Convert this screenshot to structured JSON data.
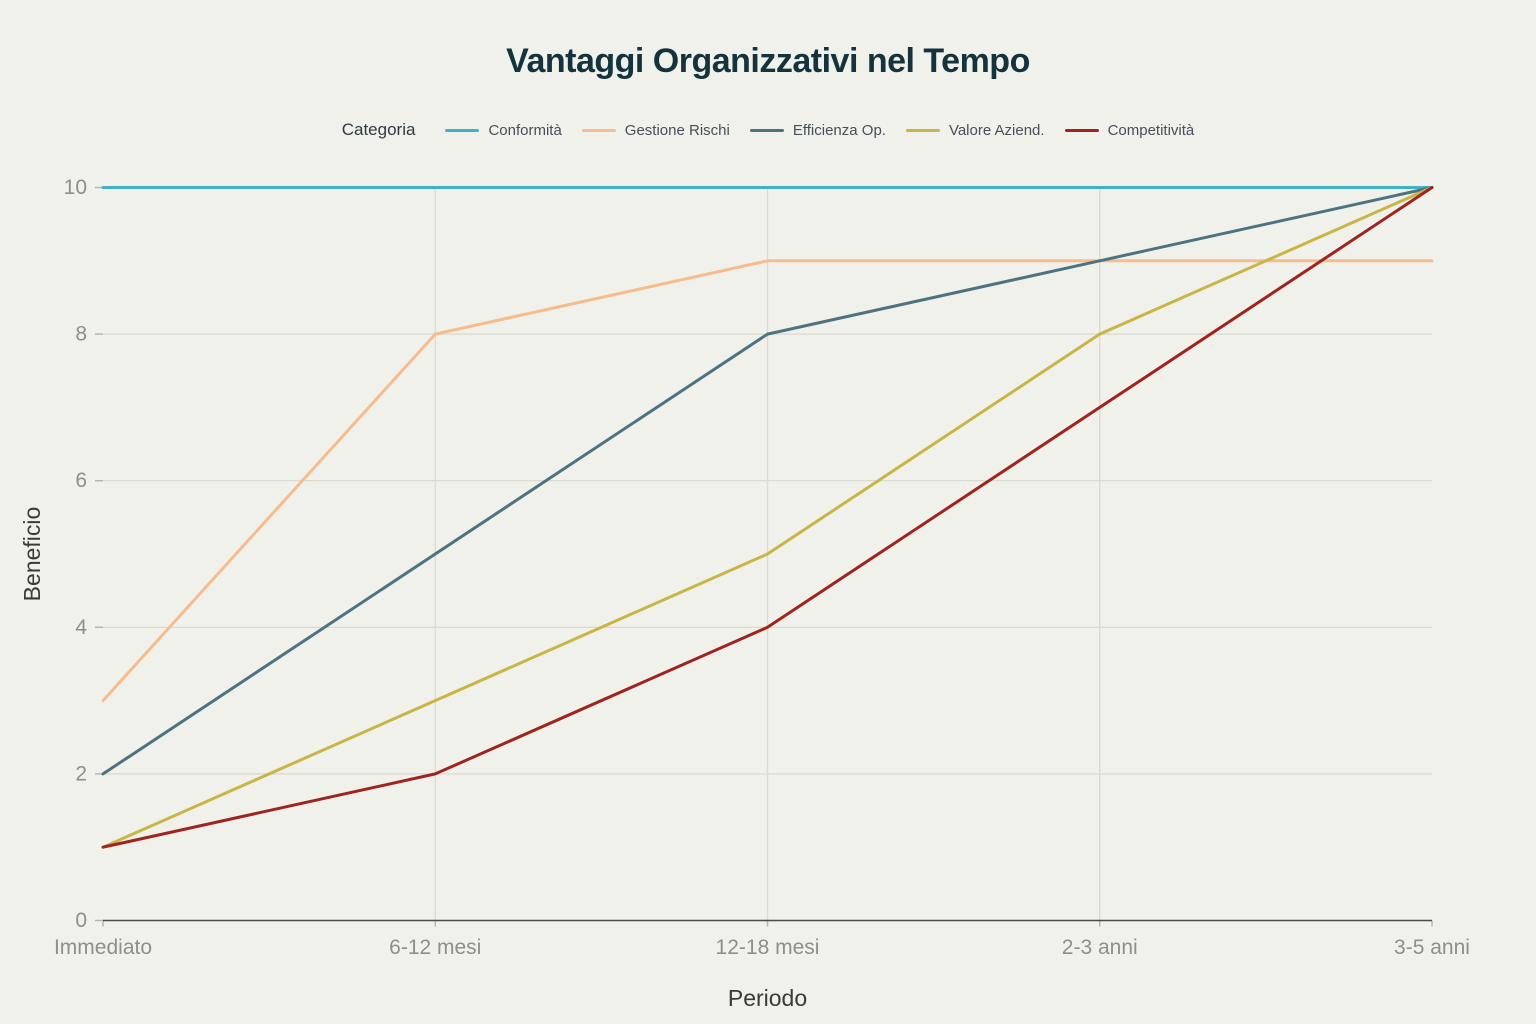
{
  "chart_data": {
    "type": "line",
    "title": "Vantaggi Organizzativi nel Tempo",
    "xlabel": "Periodo",
    "ylabel": "Beneficio",
    "legend_title": "Categoria",
    "legend_position": "top",
    "grid": true,
    "categories": [
      "Immediato",
      "6-12 mesi",
      "12-18 mesi",
      "2-3 anni",
      "3-5 anni"
    ],
    "y_ticks": [
      0,
      2,
      4,
      6,
      8,
      10
    ],
    "ylim": [
      0,
      10
    ],
    "series": [
      {
        "name": "Conformità",
        "color": "#41b2c4",
        "values": [
          10,
          10,
          10,
          10,
          10
        ]
      },
      {
        "name": "Gestione Rischi",
        "color": "#f7bc8d",
        "values": [
          3,
          8,
          9,
          9,
          9
        ]
      },
      {
        "name": "Efficienza Op.",
        "color": "#4e7380",
        "values": [
          2,
          5,
          8,
          9,
          10
        ]
      },
      {
        "name": "Valore Aziend.",
        "color": "#c9b546",
        "values": [
          1,
          3,
          5,
          8,
          10
        ]
      },
      {
        "name": "Competitività",
        "color": "#9f241e",
        "values": [
          1,
          2,
          4,
          7,
          10
        ]
      }
    ]
  },
  "colors": {
    "background": "#f1f1ec",
    "grid": "#dcdbd2",
    "axis_line": "#4b4b47",
    "tick_mark": "#b5b5ad",
    "tick_text": "#8f8f89",
    "axis_title_text": "#3a3a36",
    "title_text": "#14333c"
  }
}
